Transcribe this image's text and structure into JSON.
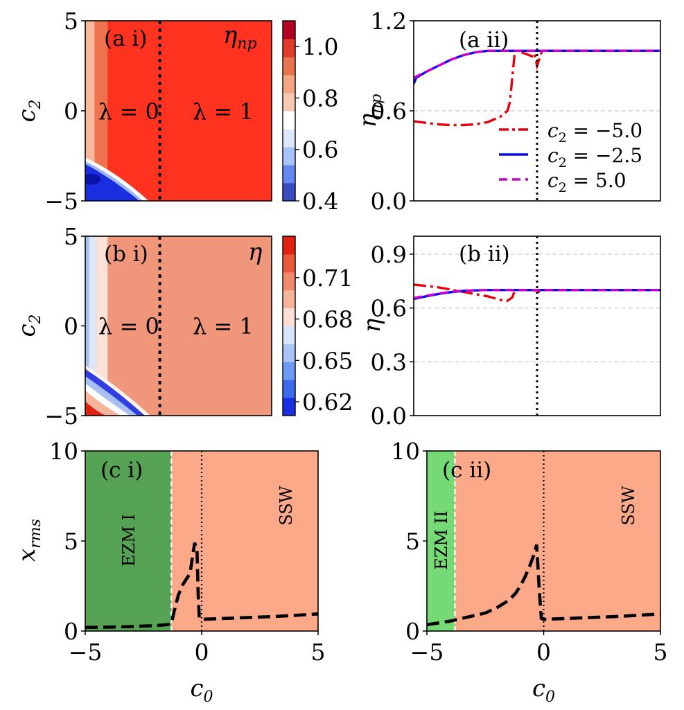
{
  "chart_data": [
    {
      "id": "a_i",
      "type": "heatmap",
      "panel_label": "(a i)",
      "ylabel": "c2",
      "corner_label": "ηnp",
      "regions": [
        "λ = 0",
        "λ = 1"
      ],
      "divider_x": -1,
      "xlim": [
        -5,
        5
      ],
      "ylim": [
        -5,
        5
      ],
      "yticks": [
        "5",
        "0",
        "−5"
      ],
      "colorbar": {
        "ticks": [
          "1.0",
          "0.8",
          "0.6",
          "0.4"
        ],
        "range": [
          0.4,
          1.1
        ],
        "colors": [
          "#3b4cc0",
          "#6388f0",
          "#a6c3fd",
          "#dde8fb",
          "#ffffff",
          "#f8c8b0",
          "#f4a582",
          "#e8744e",
          "#e03c2b",
          "#b40426"
        ]
      },
      "colors": {
        "high": "#ff3320",
        "band_mid": "#ee744f",
        "band_light": "#f7b89c",
        "low": "#1a2de0",
        "edge": "#ffffff"
      }
    },
    {
      "id": "a_ii",
      "type": "line",
      "panel_label": "(a ii)",
      "ylabel": "ηnp",
      "xlim": [
        -5,
        5
      ],
      "ylim": [
        0,
        1.2
      ],
      "yticks": [
        "1.2",
        "0.6",
        "0.0"
      ],
      "hgrid": [
        0.6,
        1.2
      ],
      "vline": 0,
      "series": [
        {
          "name": "c2 = −5.0",
          "color": "#e8000b",
          "dash": "18,6,4,6",
          "x": [
            -5,
            -4.5,
            -4,
            -3.5,
            -3,
            -2.5,
            -2,
            -1.5,
            -1.2,
            -1.1,
            -0.9,
            -0.8,
            -0.15,
            -0.1,
            0,
            0.1,
            0.2,
            1,
            2,
            3,
            4,
            5
          ],
          "y": [
            0.53,
            0.52,
            0.51,
            0.505,
            0.505,
            0.51,
            0.525,
            0.56,
            0.6,
            0.66,
            1.0,
            1.0,
            0.96,
            0.98,
            0.9,
            0.95,
            1.0,
            1.0,
            1.0,
            1.0,
            1.0,
            1.0
          ]
        },
        {
          "name": "c2 = −2.5",
          "color": "#0a0aee",
          "dash": "",
          "x": [
            -5,
            -4.9,
            -4.5,
            -4,
            -3.5,
            -3,
            -2.5,
            -2,
            -1.5,
            -1,
            0,
            1,
            2,
            3,
            4,
            5
          ],
          "y": [
            0.78,
            0.82,
            0.86,
            0.9,
            0.94,
            0.97,
            0.99,
            1.0,
            1.0,
            1.0,
            1.0,
            1.0,
            1.0,
            1.0,
            1.0,
            1.0
          ]
        },
        {
          "name": "c2 = 5.0",
          "color": "#cc00cc",
          "dash": "12,7",
          "x": [
            -5,
            -4.5,
            -4,
            -3.5,
            -3,
            -2.5,
            -2,
            -1.5,
            -1,
            0,
            1,
            2,
            3,
            4,
            5
          ],
          "y": [
            0.82,
            0.86,
            0.9,
            0.94,
            0.97,
            0.99,
            1.0,
            1.0,
            1.0,
            1.0,
            1.0,
            1.0,
            1.0,
            1.0,
            1.0
          ]
        }
      ]
    },
    {
      "id": "b_i",
      "type": "heatmap",
      "panel_label": "(b i)",
      "ylabel": "c2",
      "corner_label": "η",
      "regions": [
        "λ = 0",
        "λ = 1"
      ],
      "divider_x": -1,
      "xlim": [
        -5,
        5
      ],
      "ylim": [
        -5,
        5
      ],
      "yticks": [
        "5",
        "0",
        "−5"
      ],
      "colorbar": {
        "ticks": [
          "0.71",
          "0.68",
          "0.65",
          "0.62"
        ],
        "range": [
          0.61,
          0.74
        ],
        "colors": [
          "#1a2de0",
          "#3b6be8",
          "#6c9af2",
          "#a9c5f7",
          "#d9e5fb",
          "#fde0d4",
          "#f7b49a",
          "#ef8a6c",
          "#e85a3a",
          "#e02010"
        ]
      },
      "colors": {
        "main": "#f0967a",
        "pale_blue": "#dde6f8",
        "pale_pink": "#fde2d8",
        "blue": "#3040e0",
        "light_blue": "#a8bff2",
        "red": "#e02010"
      }
    },
    {
      "id": "b_ii",
      "type": "line",
      "panel_label": "(b ii)",
      "ylabel": "η",
      "xlim": [
        -5,
        5
      ],
      "ylim": [
        0,
        1.0
      ],
      "yticks": [
        "0.9",
        "0.6",
        "0.3",
        "0.0"
      ],
      "hgrid": [
        0.3,
        0.6,
        0.9
      ],
      "vline": 0,
      "series": [
        {
          "name": "c2 = −5.0",
          "color": "#e8000b",
          "dash": "18,6,4,6",
          "x": [
            -5,
            -4,
            -3,
            -2,
            -1.5,
            -1.2,
            -1,
            -0.9,
            -0.1,
            0,
            0.1,
            0.3,
            1,
            2,
            3,
            4,
            5
          ],
          "y": [
            0.73,
            0.715,
            0.69,
            0.665,
            0.645,
            0.64,
            0.66,
            0.7,
            0.7,
            0.68,
            0.695,
            0.7,
            0.7,
            0.7,
            0.7,
            0.7,
            0.7
          ]
        },
        {
          "name": "c2 = −2.5",
          "color": "#0a0aee",
          "dash": "",
          "x": [
            -5,
            -4.5,
            -4,
            -3.5,
            -3,
            -2.5,
            -2,
            -1,
            0,
            1,
            2,
            3,
            4,
            5
          ],
          "y": [
            0.65,
            0.665,
            0.678,
            0.688,
            0.695,
            0.698,
            0.7,
            0.7,
            0.7,
            0.7,
            0.7,
            0.7,
            0.7,
            0.7
          ]
        },
        {
          "name": "c2 = 5.0",
          "color": "#cc00cc",
          "dash": "12,7",
          "x": [
            -5,
            -4.5,
            -4,
            -3.5,
            -3,
            -2.5,
            -2,
            -1,
            0,
            1,
            2,
            3,
            4,
            5
          ],
          "y": [
            0.655,
            0.668,
            0.68,
            0.69,
            0.696,
            0.699,
            0.7,
            0.7,
            0.7,
            0.7,
            0.7,
            0.7,
            0.7,
            0.7
          ]
        }
      ]
    },
    {
      "id": "c_i",
      "type": "line",
      "panel_label": "(c i)",
      "xlabel": "c0",
      "ylabel": "xrms",
      "xlim": [
        -5,
        5
      ],
      "ylim": [
        0,
        10
      ],
      "xticks": [
        "−5",
        "0",
        "5"
      ],
      "yticks": [
        "10",
        "5",
        "0"
      ],
      "regions": [
        {
          "label": "EZM I",
          "x0": -5,
          "x1": -1.3,
          "color": "#56a355"
        },
        {
          "label": "SSW",
          "x0": -1.3,
          "x1": 5,
          "color": "#fca98a"
        }
      ],
      "vline": 0,
      "boundary": -1.3,
      "series": [
        {
          "color": "#000000",
          "dash": "18,8",
          "x": [
            -5,
            -4,
            -3,
            -2,
            -1.5,
            -1.3,
            -1.2,
            -1.0,
            -0.8,
            -0.5,
            -0.3,
            -0.2,
            -0.15,
            -0.1,
            0,
            1,
            2,
            3,
            4,
            5
          ],
          "y": [
            0.2,
            0.22,
            0.25,
            0.3,
            0.35,
            0.4,
            1.0,
            2.0,
            2.6,
            3.2,
            4.9,
            4.5,
            2.0,
            0.7,
            0.65,
            0.7,
            0.75,
            0.8,
            0.87,
            0.95
          ]
        }
      ]
    },
    {
      "id": "c_ii",
      "type": "line",
      "panel_label": "(c ii)",
      "xlabel": "c0",
      "xlim": [
        -5,
        5
      ],
      "ylim": [
        0,
        10
      ],
      "xticks": [
        "−5",
        "0",
        "5"
      ],
      "yticks": [
        "10",
        "5",
        "0"
      ],
      "regions": [
        {
          "label": "EZM II",
          "x0": -5,
          "x1": -3.8,
          "color": "#75da75"
        },
        {
          "label": "SSW",
          "x0": -3.8,
          "x1": 5,
          "color": "#fca98a"
        }
      ],
      "vline": 0,
      "boundary": -3.8,
      "series": [
        {
          "color": "#000000",
          "dash": "18,8",
          "x": [
            -5,
            -4.5,
            -4,
            -3.5,
            -3,
            -2.5,
            -2,
            -1.5,
            -1.2,
            -1,
            -0.8,
            -0.6,
            -0.4,
            -0.3,
            -0.2,
            -0.1,
            0,
            1,
            2,
            3,
            4,
            5
          ],
          "y": [
            0.35,
            0.45,
            0.55,
            0.7,
            0.85,
            1.0,
            1.3,
            1.7,
            2.1,
            2.5,
            3.0,
            3.6,
            4.3,
            4.8,
            2.5,
            0.7,
            0.65,
            0.7,
            0.75,
            0.8,
            0.87,
            0.95
          ]
        }
      ]
    }
  ]
}
